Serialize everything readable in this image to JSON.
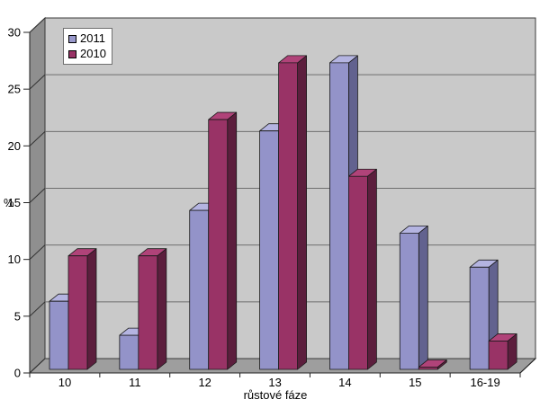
{
  "chart_data": {
    "type": "bar",
    "style": "3d-clustered",
    "title": "",
    "xlabel": "růstové fáze",
    "ylabel": "%",
    "ylim": [
      0,
      30
    ],
    "ytick_step": 5,
    "y_tick_labels": [
      "0",
      "5",
      "10",
      "15",
      "20",
      "25",
      "30"
    ],
    "categories": [
      "10",
      "11",
      "12",
      "13",
      "14",
      "15",
      "16-19"
    ],
    "series": [
      {
        "name": "2011",
        "color": "#9999CC",
        "values": [
          6,
          3,
          14,
          21,
          27,
          12,
          9
        ]
      },
      {
        "name": "2010",
        "color": "#993366",
        "values": [
          10,
          10,
          22,
          27,
          17,
          0.2,
          2.5
        ]
      }
    ],
    "grid": true,
    "legend_position": "top-left"
  },
  "colors": {
    "series_2011": {
      "front": "#9393C9",
      "top": "#B4B4E1",
      "side": "#62628F"
    },
    "series_2010": {
      "front": "#993366",
      "top": "#B04379",
      "side": "#5C1E3D"
    },
    "back_wall": "#C9C9C9",
    "left_wall": "#8F8F8F",
    "floor": "#9E9E9E",
    "gridline": "#6E6E6E",
    "edge": "#3A3A3A",
    "bar_outline": "#1A1A1A",
    "text": "#000000",
    "legend_bg": "#FFFFFF",
    "legend_border": "#707070"
  }
}
